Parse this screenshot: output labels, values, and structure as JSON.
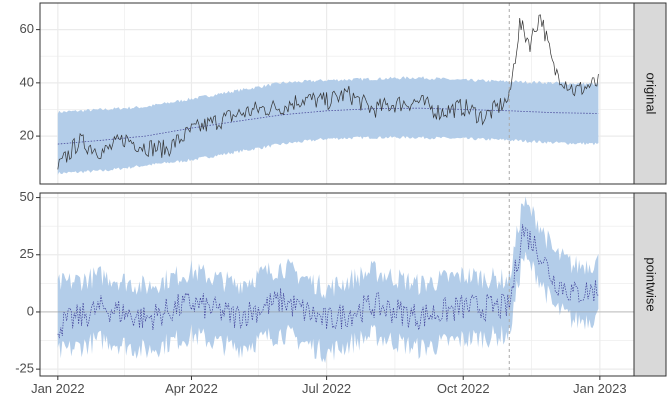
{
  "chart_data": {
    "type": "line",
    "x_axis": {
      "type": "date",
      "range": [
        "2021-12-20",
        "2023-01-24"
      ],
      "ticks": [
        {
          "date": "2022-01-01",
          "label": "Jan 2022"
        },
        {
          "date": "2022-04-01",
          "label": "Apr 2022"
        },
        {
          "date": "2022-07-01",
          "label": "Jul 2022"
        },
        {
          "date": "2022-10-01",
          "label": "Oct 2022"
        },
        {
          "date": "2023-01-01",
          "label": "Jan 2023"
        }
      ]
    },
    "intervention_date": "2022-11-01",
    "panels": [
      {
        "strip_label": "original",
        "ylim": [
          2,
          70
        ],
        "yticks": [
          20,
          40,
          60
        ],
        "series": [
          {
            "role": "observed",
            "points": [
              [
                "2022-01-01",
                8
              ],
              [
                "2022-01-15",
                18
              ],
              [
                "2022-02-01",
                14
              ],
              [
                "2022-02-15",
                19
              ],
              [
                "2022-03-01",
                16
              ],
              [
                "2022-03-15",
                15
              ],
              [
                "2022-04-01",
                22
              ],
              [
                "2022-04-15",
                25
              ],
              [
                "2022-05-01",
                28
              ],
              [
                "2022-05-15",
                30
              ],
              [
                "2022-06-01",
                31
              ],
              [
                "2022-06-15",
                34
              ],
              [
                "2022-07-01",
                33
              ],
              [
                "2022-07-15",
                36
              ],
              [
                "2022-08-01",
                30
              ],
              [
                "2022-08-15",
                32
              ],
              [
                "2022-09-01",
                33
              ],
              [
                "2022-09-15",
                29
              ],
              [
                "2022-10-01",
                31
              ],
              [
                "2022-10-15",
                27
              ],
              [
                "2022-11-01",
                34
              ],
              [
                "2022-11-08",
                62
              ],
              [
                "2022-11-15",
                55
              ],
              [
                "2022-11-22",
                66
              ],
              [
                "2022-12-01",
                45
              ],
              [
                "2022-12-15",
                37
              ],
              [
                "2022-12-31",
                40
              ]
            ]
          },
          {
            "role": "predicted",
            "points": [
              [
                "2022-01-01",
                17
              ],
              [
                "2022-02-01",
                18.5
              ],
              [
                "2022-03-01",
                20
              ],
              [
                "2022-04-01",
                23
              ],
              [
                "2022-05-01",
                25.5
              ],
              [
                "2022-06-01",
                28
              ],
              [
                "2022-07-01",
                29.5
              ],
              [
                "2022-08-01",
                30.3
              ],
              [
                "2022-09-01",
                30.5
              ],
              [
                "2022-10-01",
                30
              ],
              [
                "2022-11-01",
                29.5
              ],
              [
                "2022-12-01",
                28.8
              ],
              [
                "2022-12-31",
                28.5
              ]
            ]
          },
          {
            "role": "interval",
            "points": [
              [
                "2022-01-01",
                6,
                29
              ],
              [
                "2022-02-01",
                7,
                30
              ],
              [
                "2022-03-01",
                9,
                31
              ],
              [
                "2022-04-01",
                11,
                34
              ],
              [
                "2022-05-01",
                14,
                37
              ],
              [
                "2022-06-01",
                17,
                40
              ],
              [
                "2022-07-01",
                19,
                41
              ],
              [
                "2022-08-01",
                19.5,
                41.5
              ],
              [
                "2022-09-01",
                19.5,
                42
              ],
              [
                "2022-10-01",
                19,
                41
              ],
              [
                "2022-11-01",
                18.5,
                40.5
              ],
              [
                "2022-12-01",
                17.5,
                40
              ],
              [
                "2022-12-31",
                17,
                39.5
              ]
            ]
          }
        ]
      },
      {
        "strip_label": "pointwise",
        "ylim": [
          -28,
          52
        ],
        "yticks": [
          -25,
          0,
          25,
          50
        ],
        "series": [
          {
            "role": "effect",
            "points": [
              [
                "2022-01-01",
                -6
              ],
              [
                "2022-02-01",
                2
              ],
              [
                "2022-03-01",
                -3
              ],
              [
                "2022-04-01",
                4
              ],
              [
                "2022-05-01",
                -2
              ],
              [
                "2022-06-01",
                5
              ],
              [
                "2022-07-01",
                -4
              ],
              [
                "2022-08-01",
                3
              ],
              [
                "2022-09-01",
                -2
              ],
              [
                "2022-10-01",
                2
              ],
              [
                "2022-11-01",
                2
              ],
              [
                "2022-11-10",
                36
              ],
              [
                "2022-11-20",
                28
              ],
              [
                "2022-12-01",
                14
              ],
              [
                "2022-12-15",
                8
              ],
              [
                "2022-12-31",
                10
              ]
            ]
          },
          {
            "role": "interval",
            "points": [
              [
                "2022-01-01",
                -18,
                12
              ],
              [
                "2022-02-01",
                -12,
                16
              ],
              [
                "2022-03-01",
                -17,
                11
              ],
              [
                "2022-04-01",
                -10,
                18
              ],
              [
                "2022-05-01",
                -16,
                12
              ],
              [
                "2022-06-01",
                -9,
                20
              ],
              [
                "2022-07-01",
                -18,
                10
              ],
              [
                "2022-08-01",
                -10,
                18
              ],
              [
                "2022-09-01",
                -16,
                12
              ],
              [
                "2022-10-01",
                -12,
                16
              ],
              [
                "2022-11-01",
                -10,
                14
              ],
              [
                "2022-11-10",
                24,
                48
              ],
              [
                "2022-11-20",
                16,
                40
              ],
              [
                "2022-12-01",
                2,
                26
              ],
              [
                "2022-12-15",
                -4,
                20
              ],
              [
                "2022-12-31",
                -2,
                22
              ]
            ]
          }
        ]
      }
    ],
    "colors": {
      "band": "#b3cde9",
      "observed_line": "#333333",
      "effect_line": "#3c3c96",
      "predicted_line": "#4a4a9a",
      "strip_bg": "#d9d9d9",
      "grid": "#ebebeb",
      "vline": "#aaaaaa"
    }
  }
}
